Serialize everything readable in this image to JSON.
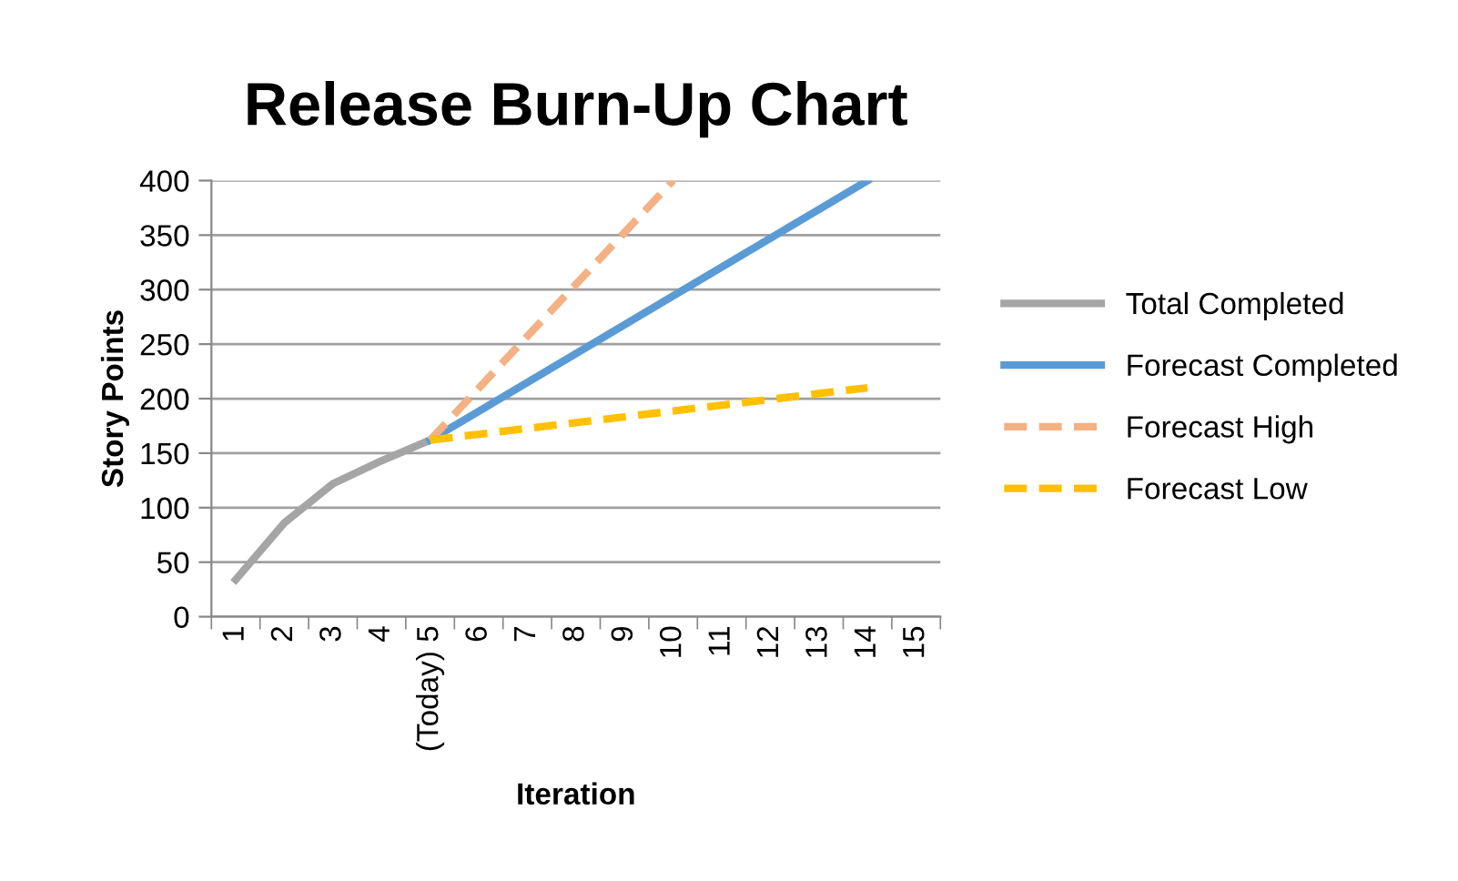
{
  "chart_data": {
    "type": "line",
    "title": "Release Burn-Up Chart",
    "xlabel": "Iteration",
    "ylabel": "Story Points",
    "categories": [
      "1",
      "2",
      "3",
      "4",
      "(Today) 5",
      "6",
      "7",
      "8",
      "9",
      "10",
      "11",
      "12",
      "13",
      "14",
      "15"
    ],
    "series": [
      {
        "name": "Total Completed",
        "color": "#a5a5a5",
        "line_style": "solid",
        "values": [
          34,
          86,
          122,
          143,
          162,
          null,
          null,
          null,
          null,
          null,
          null,
          null,
          null,
          null,
          null
        ]
      },
      {
        "name": "Forecast Completed",
        "color": "#5b9bd5",
        "line_style": "solid",
        "values": [
          null,
          null,
          null,
          null,
          162,
          null,
          null,
          null,
          null,
          null,
          null,
          null,
          null,
          400,
          null
        ]
      },
      {
        "name": "Forecast High",
        "color": "#f4b183",
        "line_style": "dashed",
        "values": [
          null,
          null,
          null,
          null,
          162,
          null,
          null,
          null,
          null,
          400,
          null,
          null,
          null,
          null,
          null
        ]
      },
      {
        "name": "Forecast Low",
        "color": "#ffc000",
        "line_style": "dashed",
        "values": [
          null,
          null,
          null,
          null,
          162,
          null,
          null,
          null,
          null,
          null,
          null,
          null,
          null,
          210,
          null
        ]
      }
    ],
    "ylim": [
      0,
      400
    ],
    "yticks": [
      0,
      50,
      100,
      150,
      200,
      250,
      300,
      350,
      400
    ],
    "grid": "y",
    "legend": "right",
    "marker": "none"
  }
}
